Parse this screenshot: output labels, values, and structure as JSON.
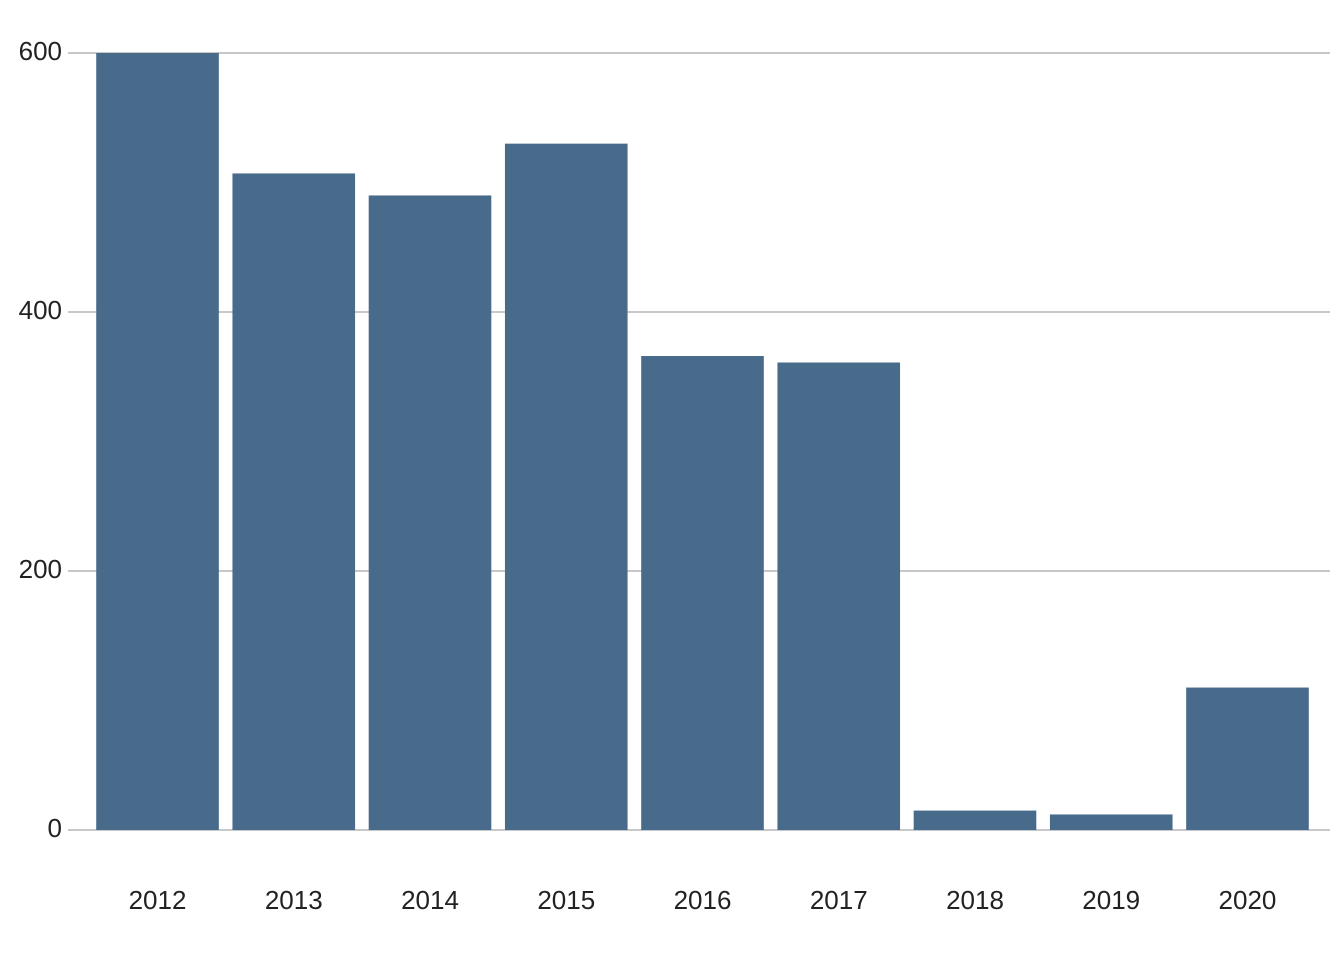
{
  "chart_data": {
    "type": "bar",
    "categories": [
      "2012",
      "2013",
      "2014",
      "2015",
      "2016",
      "2017",
      "2018",
      "2019",
      "2020"
    ],
    "values": [
      600,
      507,
      490,
      530,
      366,
      361,
      15,
      12,
      110
    ],
    "color": "#486b8c",
    "ylim": [
      0,
      600
    ],
    "yticks": [
      0,
      200,
      400,
      600
    ],
    "grid": true
  }
}
